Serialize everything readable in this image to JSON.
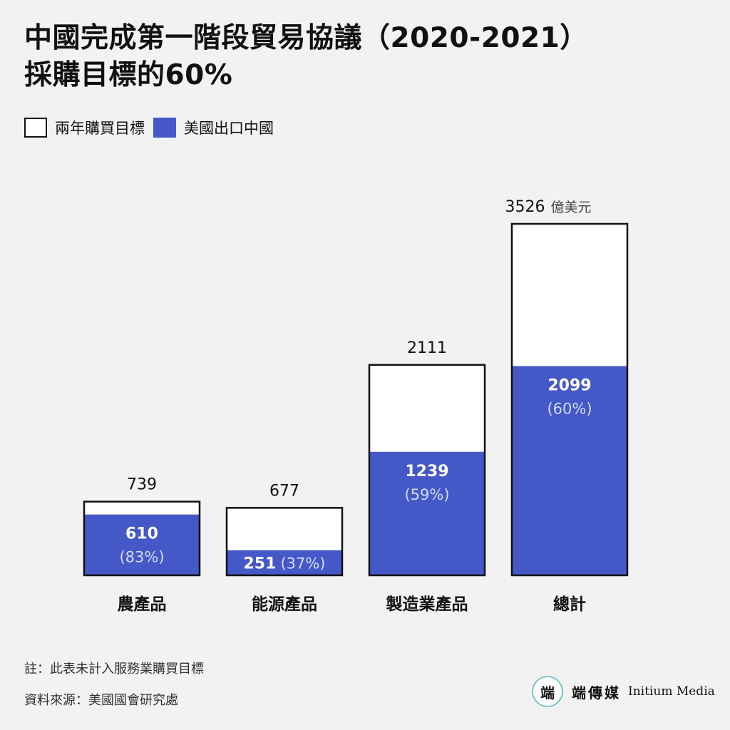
{
  "title": {
    "line1": "中國完成第一階段貿易協議（2020-2021）",
    "line2": "採購目標的60%"
  },
  "legend": [
    {
      "label": "兩年購買目標",
      "kind": "target"
    },
    {
      "label": "美國出口中國",
      "kind": "actual"
    }
  ],
  "colors": {
    "actual": "#4459c7",
    "target": "#ffffff",
    "outline": "#111111",
    "background": "#f2f2f2"
  },
  "chart_data": {
    "type": "bar",
    "categories": [
      "農產品",
      "能源產品",
      "製造業產品",
      "總計"
    ],
    "series": [
      {
        "name": "兩年購買目標",
        "values": [
          739,
          677,
          2111,
          3526
        ]
      },
      {
        "name": "美國出口中國",
        "values": [
          610,
          251,
          1239,
          2099
        ]
      }
    ],
    "percent_labels": [
      "(83%)",
      "(37%)",
      "(59%)",
      "(60%)"
    ],
    "unit": "億美元",
    "ylim": [
      0,
      3526
    ],
    "grid": false
  },
  "notes": {
    "note": "註：此表未計入服務業購買目標",
    "source": "資料來源：美國國會研究處"
  },
  "brand": {
    "mark": "端",
    "name_cn": "端傳媒",
    "name_en": "Initium Media"
  }
}
